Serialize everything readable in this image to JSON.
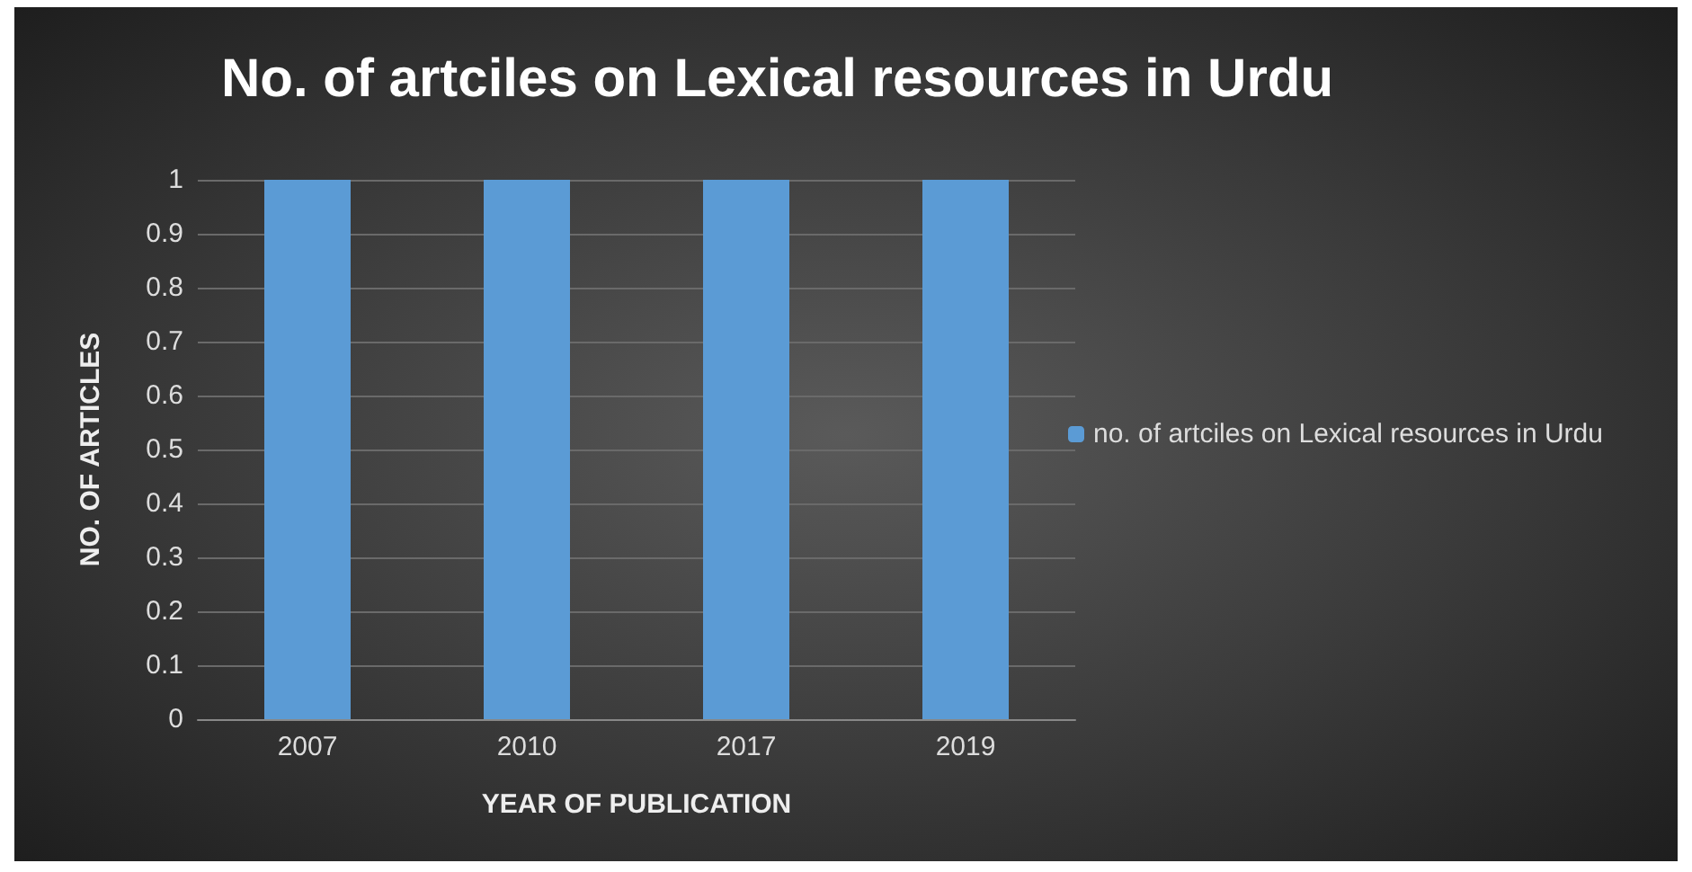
{
  "chart_data": {
    "type": "bar",
    "title": "No. of artciles on Lexical resources in Urdu",
    "xlabel": "YEAR OF PUBLICATION",
    "ylabel": "NO. OF ARTICLES",
    "categories": [
      "2007",
      "2010",
      "2017",
      "2019"
    ],
    "series": [
      {
        "name": "no. of artciles on Lexical resources in Urdu",
        "color": "#5b9bd5",
        "values": [
          1,
          1,
          1,
          1
        ]
      }
    ],
    "ylim": [
      0,
      1
    ],
    "yticks": [
      0,
      0.1,
      0.2,
      0.3,
      0.4,
      0.5,
      0.6,
      0.7,
      0.8,
      0.9,
      1
    ],
    "grid": "y",
    "legend": "right"
  }
}
